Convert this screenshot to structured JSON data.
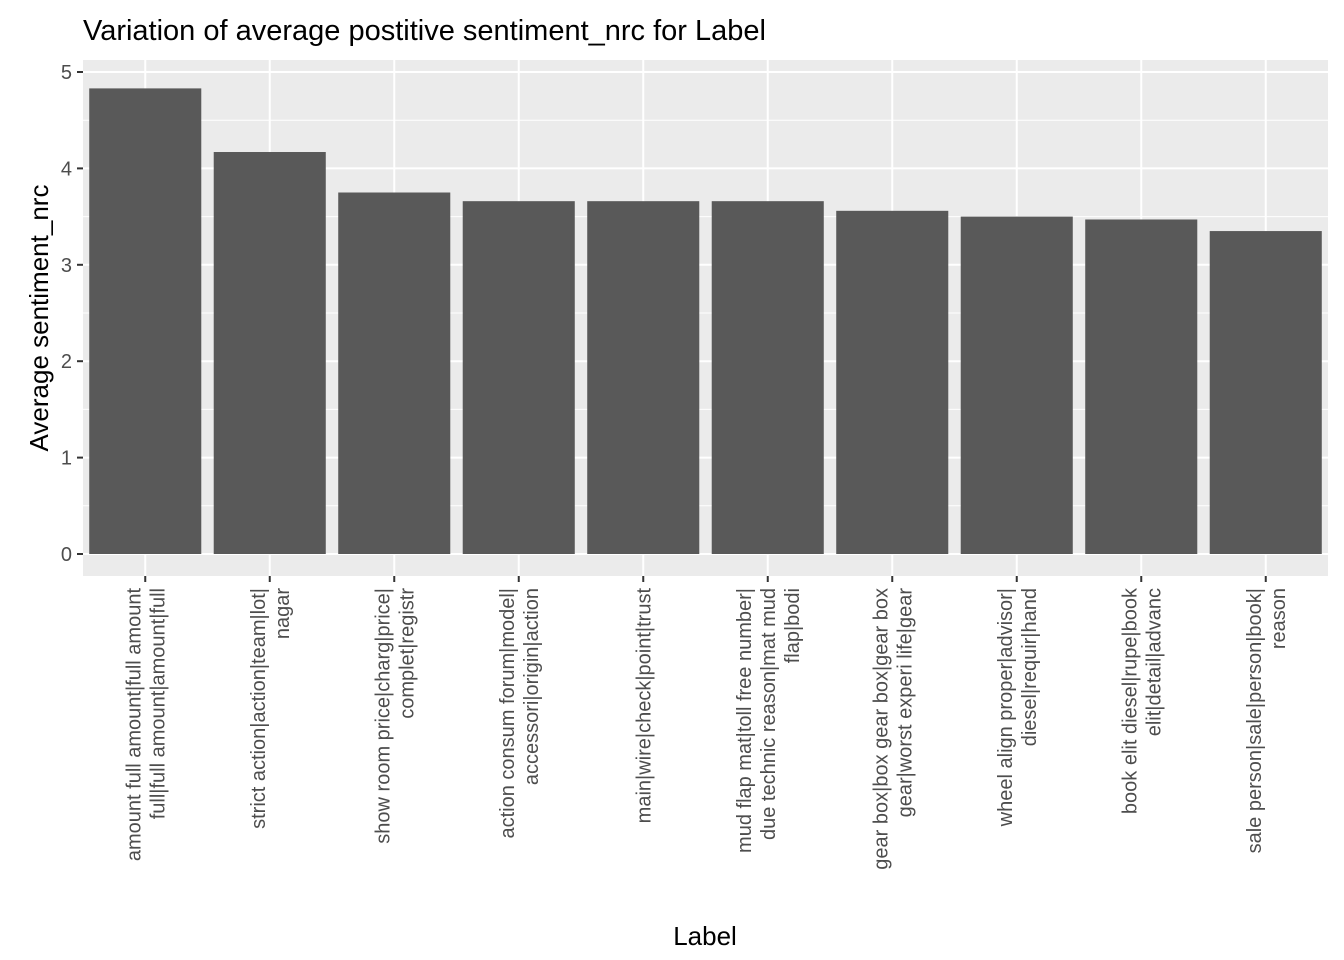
{
  "chart_data": {
    "type": "bar",
    "title": "Variation of average postitive sentiment_nrc for Label",
    "xlabel": "Label",
    "ylabel": "Average  sentiment_nrc",
    "ylim": [
      0,
      5
    ],
    "yticks": [
      "0",
      "1",
      "2",
      "3",
      "4",
      "5"
    ],
    "grid": true,
    "bar_color": "#595959",
    "panel_color": "#ebebeb",
    "categories": [
      [
        "amount full amount|full amount",
        "full|full amount|amount|full"
      ],
      [
        "strict action|action|team|lot|",
        "nagar"
      ],
      [
        "show room price|charg|price|",
        "complet|registr"
      ],
      [
        "action consum forum|model|",
        "accessori|origin|action"
      ],
      [
        "main|wire|check|point|trust"
      ],
      [
        "mud flap mat|toll free number|",
        "due technic reason|mat mud",
        "flap|bodi"
      ],
      [
        "gear box|box gear box|gear box",
        "gear|worst experi life|gear"
      ],
      [
        "wheel align proper|advisor|",
        "diesel|requir|hand"
      ],
      [
        "book elit diesel|rupe|book",
        "elit|detail|advanc"
      ],
      [
        "sale person|sale|person|book|",
        "reason"
      ]
    ],
    "values": [
      4.83,
      4.17,
      3.75,
      3.66,
      3.66,
      3.66,
      3.56,
      3.5,
      3.47,
      3.35
    ]
  }
}
